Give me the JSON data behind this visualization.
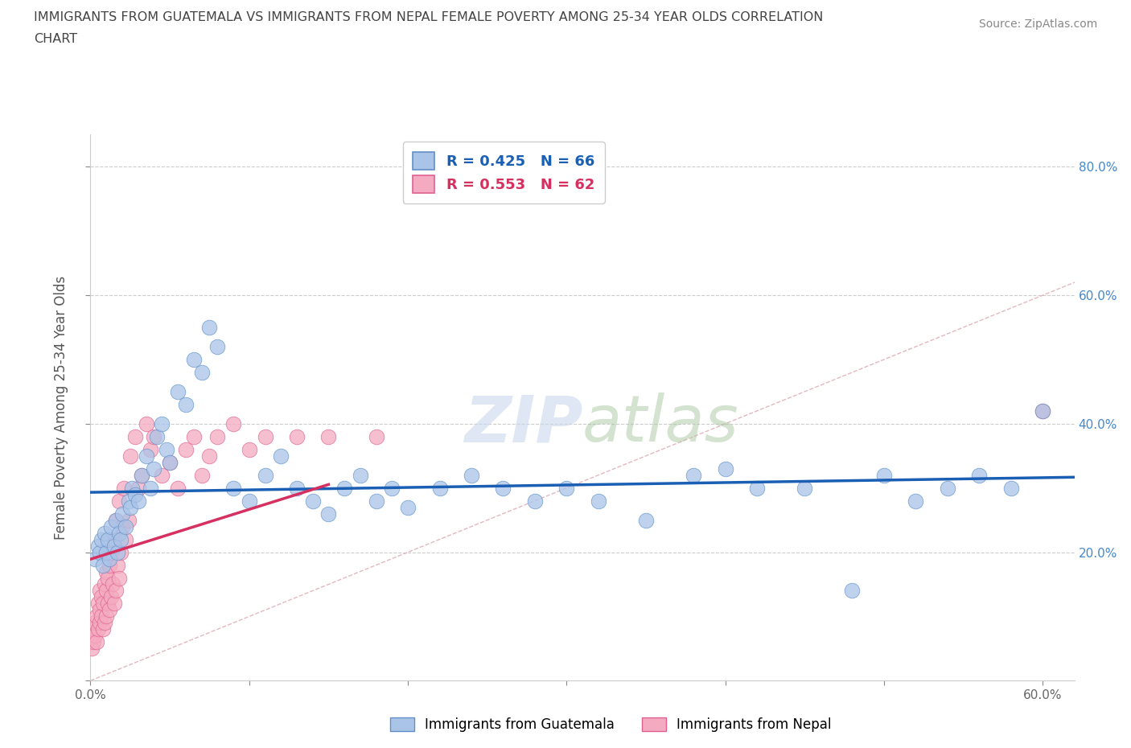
{
  "title_line1": "IMMIGRANTS FROM GUATEMALA VS IMMIGRANTS FROM NEPAL FEMALE POVERTY AMONG 25-34 YEAR OLDS CORRELATION",
  "title_line2": "CHART",
  "source_text": "Source: ZipAtlas.com",
  "ylabel": "Female Poverty Among 25-34 Year Olds",
  "xlim": [
    0.0,
    0.62
  ],
  "ylim": [
    0.0,
    0.85
  ],
  "xtick_positions": [
    0.0,
    0.1,
    0.2,
    0.3,
    0.4,
    0.5,
    0.6
  ],
  "ytick_positions": [
    0.0,
    0.2,
    0.4,
    0.6,
    0.8
  ],
  "guatemala_color": "#aac4e8",
  "nepal_color": "#f4aac0",
  "guatemala_edge": "#6090c8",
  "nepal_edge": "#e06090",
  "trend_blue": "#1a5fb4",
  "trend_pink": "#d63060",
  "diag_color": "#e0b0b8",
  "watermark_color": "#c8d8ec",
  "right_axis_color": "#4488cc",
  "r_guatemala": 0.425,
  "n_guatemala": 66,
  "r_nepal": 0.553,
  "n_nepal": 62,
  "legend_guatemala": "Immigrants from Guatemala",
  "legend_nepal": "Immigrants from Nepal",
  "guatemala_x": [
    0.003,
    0.005,
    0.006,
    0.007,
    0.008,
    0.009,
    0.01,
    0.011,
    0.012,
    0.013,
    0.015,
    0.016,
    0.017,
    0.018,
    0.019,
    0.02,
    0.022,
    0.024,
    0.025,
    0.026,
    0.028,
    0.03,
    0.032,
    0.035,
    0.038,
    0.04,
    0.042,
    0.045,
    0.048,
    0.05,
    0.055,
    0.06,
    0.065,
    0.07,
    0.075,
    0.08,
    0.09,
    0.1,
    0.11,
    0.12,
    0.13,
    0.14,
    0.15,
    0.16,
    0.17,
    0.18,
    0.19,
    0.2,
    0.22,
    0.24,
    0.26,
    0.28,
    0.3,
    0.32,
    0.35,
    0.38,
    0.4,
    0.42,
    0.45,
    0.48,
    0.5,
    0.52,
    0.54,
    0.56,
    0.58,
    0.6
  ],
  "guatemala_y": [
    0.19,
    0.21,
    0.2,
    0.22,
    0.18,
    0.23,
    0.2,
    0.22,
    0.19,
    0.24,
    0.21,
    0.25,
    0.2,
    0.23,
    0.22,
    0.26,
    0.24,
    0.28,
    0.27,
    0.3,
    0.29,
    0.28,
    0.32,
    0.35,
    0.3,
    0.33,
    0.38,
    0.4,
    0.36,
    0.34,
    0.45,
    0.43,
    0.5,
    0.48,
    0.55,
    0.52,
    0.3,
    0.28,
    0.32,
    0.35,
    0.3,
    0.28,
    0.26,
    0.3,
    0.32,
    0.28,
    0.3,
    0.27,
    0.3,
    0.32,
    0.3,
    0.28,
    0.3,
    0.28,
    0.25,
    0.32,
    0.33,
    0.3,
    0.3,
    0.14,
    0.32,
    0.28,
    0.3,
    0.32,
    0.3,
    0.42
  ],
  "nepal_x": [
    0.001,
    0.002,
    0.002,
    0.003,
    0.003,
    0.004,
    0.004,
    0.005,
    0.005,
    0.006,
    0.006,
    0.006,
    0.007,
    0.007,
    0.008,
    0.008,
    0.009,
    0.009,
    0.01,
    0.01,
    0.01,
    0.011,
    0.011,
    0.012,
    0.012,
    0.013,
    0.013,
    0.014,
    0.015,
    0.015,
    0.016,
    0.016,
    0.017,
    0.018,
    0.018,
    0.019,
    0.02,
    0.021,
    0.022,
    0.024,
    0.025,
    0.028,
    0.03,
    0.032,
    0.035,
    0.038,
    0.04,
    0.045,
    0.05,
    0.055,
    0.06,
    0.065,
    0.07,
    0.075,
    0.08,
    0.09,
    0.1,
    0.11,
    0.13,
    0.15,
    0.18,
    0.6
  ],
  "nepal_y": [
    0.05,
    0.06,
    0.08,
    0.07,
    0.09,
    0.06,
    0.1,
    0.08,
    0.12,
    0.09,
    0.11,
    0.14,
    0.1,
    0.13,
    0.08,
    0.12,
    0.09,
    0.15,
    0.1,
    0.14,
    0.17,
    0.12,
    0.16,
    0.11,
    0.18,
    0.13,
    0.2,
    0.15,
    0.12,
    0.22,
    0.14,
    0.25,
    0.18,
    0.16,
    0.28,
    0.2,
    0.24,
    0.3,
    0.22,
    0.25,
    0.35,
    0.38,
    0.3,
    0.32,
    0.4,
    0.36,
    0.38,
    0.32,
    0.34,
    0.3,
    0.36,
    0.38,
    0.32,
    0.35,
    0.38,
    0.4,
    0.36,
    0.38,
    0.38,
    0.38,
    0.38,
    0.42
  ]
}
